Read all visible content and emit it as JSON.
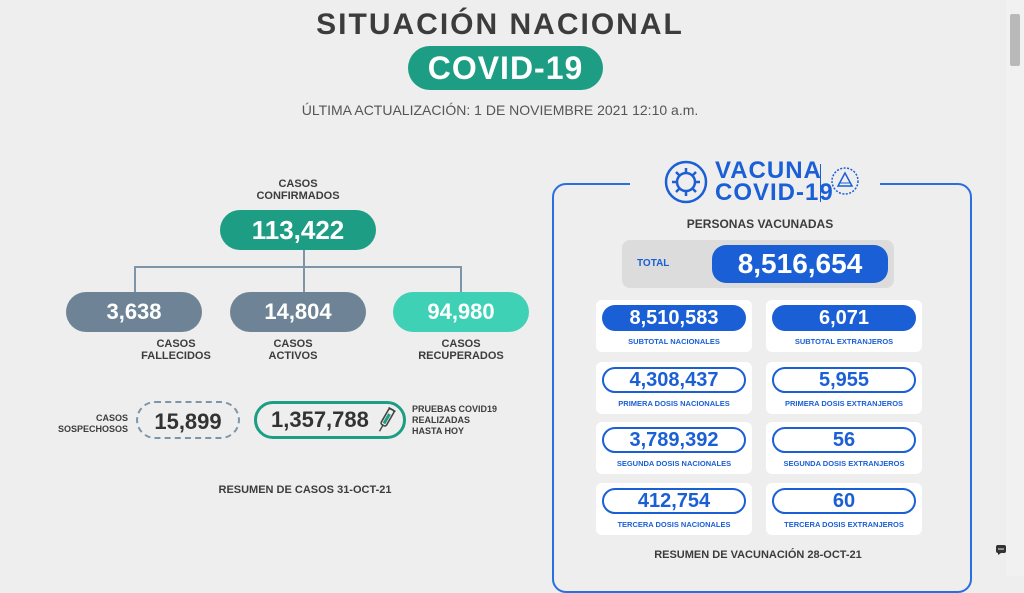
{
  "header": {
    "title": "SITUACIÓN NACIONAL",
    "badge": "COVID-19",
    "updated": "ÚLTIMA ACTUALIZACIÓN: 1 DE NOVIEMBRE 2021 12:10 a.m."
  },
  "cases": {
    "confirmed_label_1": "CASOS",
    "confirmed_label_2": "CONFIRMADOS",
    "confirmed_value": "113,422",
    "deaths_value": "3,638",
    "deaths_label_1": "CASOS",
    "deaths_label_2": "FALLECIDOS",
    "active_value": "14,804",
    "active_label_1": "CASOS",
    "active_label_2": "ACTIVOS",
    "recovered_value": "94,980",
    "recovered_label_1": "CASOS",
    "recovered_label_2": "RECUPERADOS",
    "suspected_label_1": "CASOS",
    "suspected_label_2": "SOSPECHOSOS",
    "suspected_value": "15,899",
    "tests_value": "1,357,788",
    "tests_label_1": "PRUEBAS COVID19",
    "tests_label_2": "REALIZADAS",
    "tests_label_3": "HASTA HOY",
    "summary": "RESUMEN DE CASOS 31-OCT-21"
  },
  "vaccine": {
    "logo_line1": "VACUNA",
    "logo_line2": "COVID-19",
    "heading": "PERSONAS VACUNADAS",
    "total_label": "TOTAL",
    "total_value": "8,516,654",
    "cards": [
      {
        "value": "8,510,583",
        "label": "SUBTOTAL NACIONALES"
      },
      {
        "value": "6,071",
        "label": "SUBTOTAL EXTRANJEROS"
      },
      {
        "value": "4,308,437",
        "label": "PRIMERA DOSIS NACIONALES"
      },
      {
        "value": "5,955",
        "label": "PRIMERA DOSIS EXTRANJEROS"
      },
      {
        "value": "3,789,392",
        "label": "SEGUNDA DOSIS NACIONALES"
      },
      {
        "value": "56",
        "label": "SEGUNDA DOSIS EXTRANJEROS"
      },
      {
        "value": "412,754",
        "label": "TERCERA DOSIS NACIONALES"
      },
      {
        "value": "60",
        "label": "TERCERA DOSIS EXTRANJEROS"
      }
    ],
    "summary": "RESUMEN DE VACUNACIÓN 28-OCT-21"
  },
  "icons": {
    "virus": "virus-icon",
    "seal": "el-salvador-seal-icon",
    "syringe": "test-syringe-icon",
    "chat": "chat-icon"
  }
}
